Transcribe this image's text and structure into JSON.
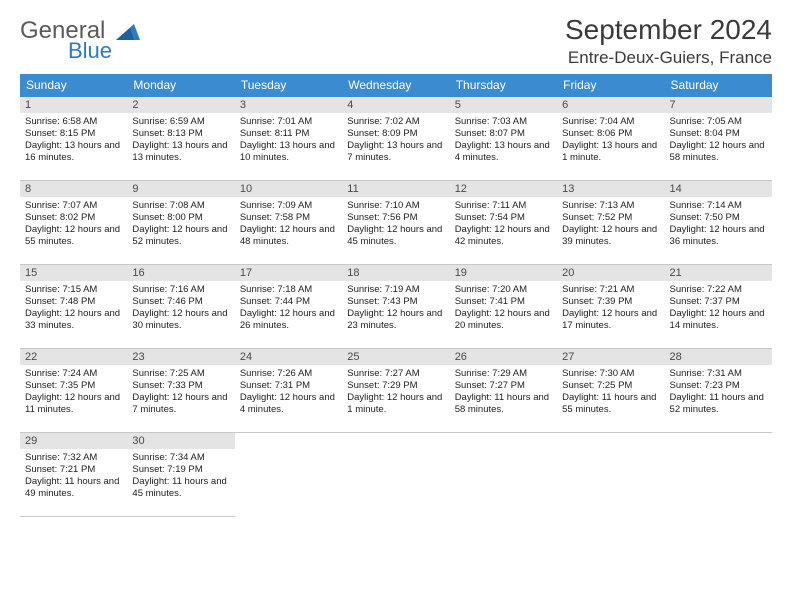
{
  "logo": {
    "text1": "General",
    "text2": "Blue"
  },
  "title": "September 2024",
  "location": "Entre-Deux-Guiers, France",
  "colors": {
    "header_bg": "#3b8bd0",
    "header_text": "#ffffff",
    "row_top_border": "#3b8bd0",
    "row_bottom_border": "#c8c8c8",
    "daynum_bg": "#e4e4e4",
    "logo_gray": "#5a5a5a",
    "logo_blue": "#2c7cc4"
  },
  "dow": [
    "Sunday",
    "Monday",
    "Tuesday",
    "Wednesday",
    "Thursday",
    "Friday",
    "Saturday"
  ],
  "weeks": [
    [
      {
        "n": "1",
        "sr": "6:58 AM",
        "ss": "8:15 PM",
        "dl": "13 hours and 16 minutes."
      },
      {
        "n": "2",
        "sr": "6:59 AM",
        "ss": "8:13 PM",
        "dl": "13 hours and 13 minutes."
      },
      {
        "n": "3",
        "sr": "7:01 AM",
        "ss": "8:11 PM",
        "dl": "13 hours and 10 minutes."
      },
      {
        "n": "4",
        "sr": "7:02 AM",
        "ss": "8:09 PM",
        "dl": "13 hours and 7 minutes."
      },
      {
        "n": "5",
        "sr": "7:03 AM",
        "ss": "8:07 PM",
        "dl": "13 hours and 4 minutes."
      },
      {
        "n": "6",
        "sr": "7:04 AM",
        "ss": "8:06 PM",
        "dl": "13 hours and 1 minute."
      },
      {
        "n": "7",
        "sr": "7:05 AM",
        "ss": "8:04 PM",
        "dl": "12 hours and 58 minutes."
      }
    ],
    [
      {
        "n": "8",
        "sr": "7:07 AM",
        "ss": "8:02 PM",
        "dl": "12 hours and 55 minutes."
      },
      {
        "n": "9",
        "sr": "7:08 AM",
        "ss": "8:00 PM",
        "dl": "12 hours and 52 minutes."
      },
      {
        "n": "10",
        "sr": "7:09 AM",
        "ss": "7:58 PM",
        "dl": "12 hours and 48 minutes."
      },
      {
        "n": "11",
        "sr": "7:10 AM",
        "ss": "7:56 PM",
        "dl": "12 hours and 45 minutes."
      },
      {
        "n": "12",
        "sr": "7:11 AM",
        "ss": "7:54 PM",
        "dl": "12 hours and 42 minutes."
      },
      {
        "n": "13",
        "sr": "7:13 AM",
        "ss": "7:52 PM",
        "dl": "12 hours and 39 minutes."
      },
      {
        "n": "14",
        "sr": "7:14 AM",
        "ss": "7:50 PM",
        "dl": "12 hours and 36 minutes."
      }
    ],
    [
      {
        "n": "15",
        "sr": "7:15 AM",
        "ss": "7:48 PM",
        "dl": "12 hours and 33 minutes."
      },
      {
        "n": "16",
        "sr": "7:16 AM",
        "ss": "7:46 PM",
        "dl": "12 hours and 30 minutes."
      },
      {
        "n": "17",
        "sr": "7:18 AM",
        "ss": "7:44 PM",
        "dl": "12 hours and 26 minutes."
      },
      {
        "n": "18",
        "sr": "7:19 AM",
        "ss": "7:43 PM",
        "dl": "12 hours and 23 minutes."
      },
      {
        "n": "19",
        "sr": "7:20 AM",
        "ss": "7:41 PM",
        "dl": "12 hours and 20 minutes."
      },
      {
        "n": "20",
        "sr": "7:21 AM",
        "ss": "7:39 PM",
        "dl": "12 hours and 17 minutes."
      },
      {
        "n": "21",
        "sr": "7:22 AM",
        "ss": "7:37 PM",
        "dl": "12 hours and 14 minutes."
      }
    ],
    [
      {
        "n": "22",
        "sr": "7:24 AM",
        "ss": "7:35 PM",
        "dl": "12 hours and 11 minutes."
      },
      {
        "n": "23",
        "sr": "7:25 AM",
        "ss": "7:33 PM",
        "dl": "12 hours and 7 minutes."
      },
      {
        "n": "24",
        "sr": "7:26 AM",
        "ss": "7:31 PM",
        "dl": "12 hours and 4 minutes."
      },
      {
        "n": "25",
        "sr": "7:27 AM",
        "ss": "7:29 PM",
        "dl": "12 hours and 1 minute."
      },
      {
        "n": "26",
        "sr": "7:29 AM",
        "ss": "7:27 PM",
        "dl": "11 hours and 58 minutes."
      },
      {
        "n": "27",
        "sr": "7:30 AM",
        "ss": "7:25 PM",
        "dl": "11 hours and 55 minutes."
      },
      {
        "n": "28",
        "sr": "7:31 AM",
        "ss": "7:23 PM",
        "dl": "11 hours and 52 minutes."
      }
    ],
    [
      {
        "n": "29",
        "sr": "7:32 AM",
        "ss": "7:21 PM",
        "dl": "11 hours and 49 minutes."
      },
      {
        "n": "30",
        "sr": "7:34 AM",
        "ss": "7:19 PM",
        "dl": "11 hours and 45 minutes."
      },
      null,
      null,
      null,
      null,
      null
    ]
  ],
  "labels": {
    "sunrise": "Sunrise:",
    "sunset": "Sunset:",
    "daylight": "Daylight:"
  }
}
